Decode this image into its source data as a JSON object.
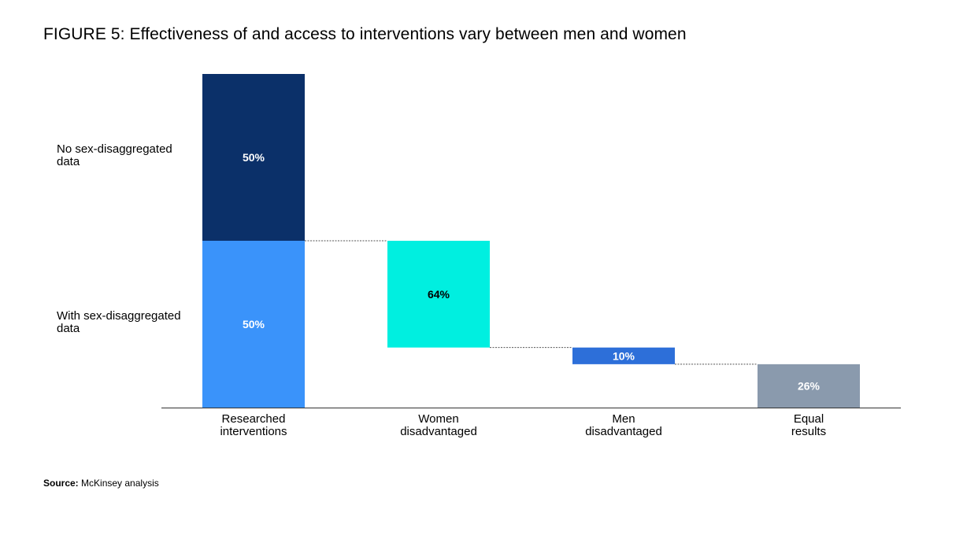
{
  "title": "FIGURE 5: Effectiveness of and access to interventions vary between men and women",
  "source": {
    "label": "Source:",
    "text": "McKinsey analysis"
  },
  "colors": {
    "no_sex_data": "#0b3069",
    "with_sex_data": "#3a93fa",
    "women_disadvantaged": "#00efe0",
    "men_disadvantaged": "#2d6fd9",
    "equal_results": "#8a9aad",
    "axis": "#333333",
    "connector": "#555555"
  },
  "chart_data": {
    "type": "bar",
    "subtype": "waterfall",
    "title": "FIGURE 5: Effectiveness of and access to interventions vary between men and women",
    "categories": [
      "Researched interventions",
      "Women disadvantaged",
      "Men disadvantaged",
      "Equal results"
    ],
    "category_labels": [
      [
        "Researched",
        "interventions"
      ],
      [
        "Women",
        "disadvantaged"
      ],
      [
        "Men",
        "disadvantaged"
      ],
      [
        "Equal",
        "results"
      ]
    ],
    "stack_labels": [
      [
        "No sex-disaggregated",
        "data"
      ],
      [
        "With sex-disaggregated",
        "data"
      ]
    ],
    "bars": [
      {
        "category": "Researched interventions",
        "segment": "With sex-disaggregated data",
        "start": 0,
        "value": 50,
        "label": "50%",
        "color_key": "with_sex_data",
        "label_color": "#ffffff"
      },
      {
        "category": "Researched interventions",
        "segment": "No sex-disaggregated data",
        "start": 50,
        "value": 50,
        "label": "50%",
        "color_key": "no_sex_data",
        "label_color": "#ffffff"
      },
      {
        "category": "Women disadvantaged",
        "segment": "Women disadvantaged",
        "start": 18,
        "value": 32,
        "label": "64%",
        "color_key": "women_disadvantaged",
        "label_color": "#000000"
      },
      {
        "category": "Men disadvantaged",
        "segment": "Men disadvantaged",
        "start": 13,
        "value": 5,
        "label": "10%",
        "color_key": "men_disadvantaged",
        "label_color": "#ffffff"
      },
      {
        "category": "Equal results",
        "segment": "Equal results",
        "start": 0,
        "value": 13,
        "label": "26%",
        "color_key": "equal_results",
        "label_color": "#ffffff"
      }
    ],
    "connectors": [
      {
        "from": 0,
        "to": 1,
        "level": 50
      },
      {
        "from": 1,
        "to": 2,
        "level": 18
      },
      {
        "from": 2,
        "to": 3,
        "level": 13
      }
    ],
    "ylim": [
      0,
      100
    ],
    "grid": false,
    "legend": "left"
  }
}
